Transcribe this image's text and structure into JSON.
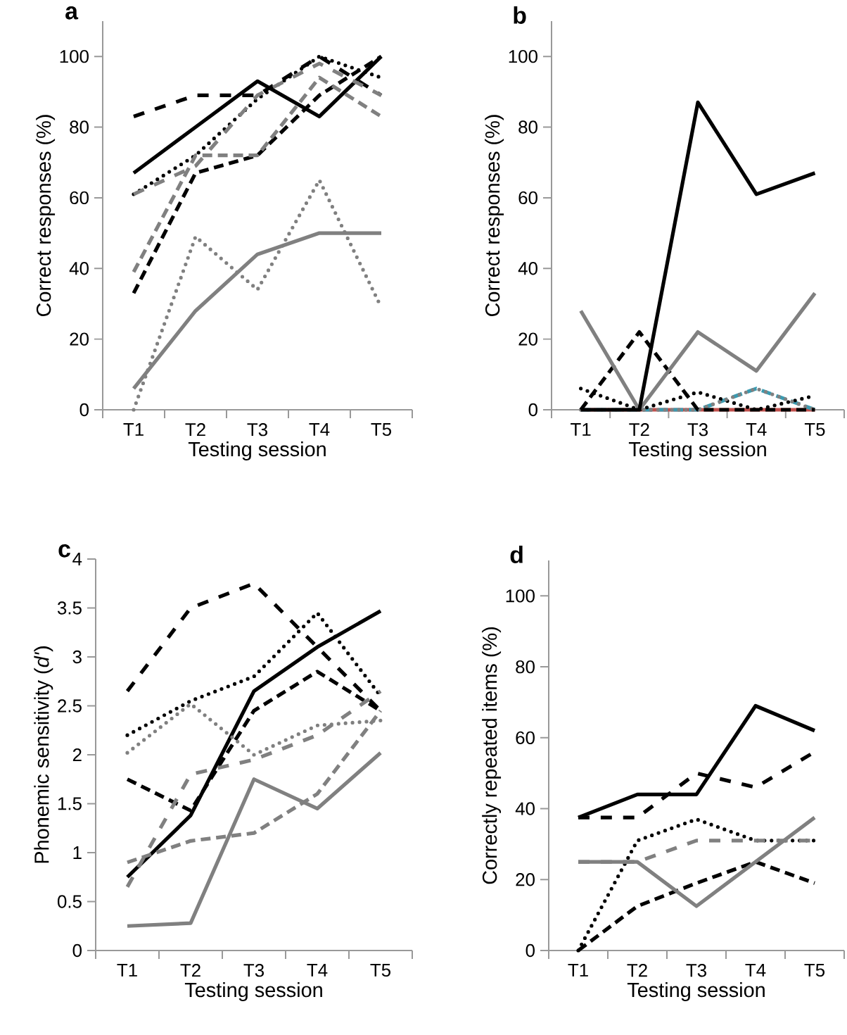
{
  "chart_data": [
    {
      "type": "line",
      "title": "a",
      "xlabel": "Testing session",
      "ylabel": "Correct responses (%)",
      "categories": [
        "T1",
        "T2",
        "T3",
        "T4",
        "T5"
      ],
      "ylim": [
        0,
        110
      ],
      "yticks": [
        0,
        20,
        40,
        60,
        80,
        100
      ],
      "marker": "none",
      "series": [
        {
          "color": "#000000",
          "line_style": "solid",
          "values": [
            67,
            80,
            93,
            83,
            100
          ]
        },
        {
          "color": "#000000",
          "line_style": "dashdot",
          "values": [
            83,
            89,
            89,
            100,
            89
          ]
        },
        {
          "color": "#000000",
          "line_style": "dashed",
          "values": [
            33,
            67,
            72,
            89,
            100
          ]
        },
        {
          "color": "#000000",
          "line_style": "dotted",
          "values": [
            61,
            72,
            88,
            100,
            94
          ]
        },
        {
          "color": "#808080",
          "line_style": "dashed",
          "values": [
            39,
            72,
            72,
            94,
            83
          ]
        },
        {
          "color": "#808080",
          "line_style": "dashdot",
          "values": [
            61,
            69,
            89,
            98,
            89
          ]
        },
        {
          "color": "#808080",
          "line_style": "dotted",
          "values": [
            0,
            49,
            34,
            65,
            29
          ]
        },
        {
          "color": "#808080",
          "line_style": "solid",
          "values": [
            6,
            28,
            44,
            50,
            50
          ]
        }
      ]
    },
    {
      "type": "line",
      "title": "b",
      "xlabel": "Testing session",
      "ylabel": "Correct responses (%)",
      "categories": [
        "T1",
        "T2",
        "T3",
        "T4",
        "T5"
      ],
      "ylim": [
        0,
        110
      ],
      "yticks": [
        0,
        20,
        40,
        60,
        80,
        100
      ],
      "marker": "none",
      "series": [
        {
          "color": "#c0504d",
          "line_style": "solid",
          "values": [
            0,
            0,
            0,
            0,
            0
          ]
        },
        {
          "color": "#3a9ab0",
          "line_style": "dashed",
          "values": [
            0,
            0,
            0,
            6,
            0
          ]
        },
        {
          "color": "#000000",
          "line_style": "dotted",
          "values": [
            6,
            0,
            5,
            0,
            4
          ]
        },
        {
          "color": "#808080",
          "line_style": "dotted",
          "values": [
            0,
            0,
            0,
            6,
            0
          ]
        },
        {
          "color": "#000000",
          "line_style": "dashed",
          "values": [
            0,
            22,
            0,
            0,
            0
          ]
        },
        {
          "color": "#808080",
          "line_style": "solid",
          "values": [
            28,
            0,
            22,
            11,
            33
          ]
        },
        {
          "color": "#000000",
          "line_style": "solid",
          "values": [
            0,
            0,
            87,
            61,
            67
          ]
        }
      ]
    },
    {
      "type": "line",
      "title": "c",
      "xlabel": "Testing session",
      "ylabel": "Phonemic sensitivity (*d'*)",
      "categories": [
        "T1",
        "T2",
        "T3",
        "T4",
        "T5"
      ],
      "ylim": [
        0,
        4
      ],
      "yticks": [
        0,
        0.5,
        1,
        1.5,
        2,
        2.5,
        3,
        3.5,
        4
      ],
      "marker": "none",
      "series": [
        {
          "color": "#000000",
          "line_style": "dashdot",
          "values": [
            2.65,
            3.5,
            3.75,
            3.1,
            2.45
          ]
        },
        {
          "color": "#000000",
          "line_style": "dotted",
          "values": [
            2.2,
            2.55,
            2.8,
            3.45,
            2.6
          ]
        },
        {
          "color": "#000000",
          "line_style": "solid",
          "values": [
            0.75,
            1.38,
            2.65,
            3.1,
            3.47
          ]
        },
        {
          "color": "#000000",
          "line_style": "dashed",
          "values": [
            1.75,
            1.43,
            2.45,
            2.85,
            2.45
          ]
        },
        {
          "color": "#808080",
          "line_style": "dotted",
          "values": [
            2.02,
            2.52,
            2.0,
            2.3,
            2.35
          ]
        },
        {
          "color": "#808080",
          "line_style": "dashdot",
          "values": [
            0.65,
            1.8,
            1.95,
            2.2,
            2.65
          ]
        },
        {
          "color": "#808080",
          "line_style": "dashed",
          "values": [
            0.9,
            1.12,
            1.2,
            1.6,
            2.45
          ]
        },
        {
          "color": "#808080",
          "line_style": "solid",
          "values": [
            0.25,
            0.28,
            1.75,
            1.45,
            2.02
          ]
        }
      ]
    },
    {
      "type": "line",
      "title": "d",
      "xlabel": "Testing session",
      "ylabel": "Correctly repeated items (%)",
      "categories": [
        "T1",
        "T2",
        "T3",
        "T4",
        "T5"
      ],
      "ylim": [
        0,
        110
      ],
      "yticks": [
        0,
        20,
        40,
        60,
        80,
        100
      ],
      "marker": "none",
      "series": [
        {
          "color": "#000000",
          "line_style": "solid",
          "values": [
            37.5,
            44,
            44,
            69,
            62
          ]
        },
        {
          "color": "#000000",
          "line_style": "dashdot",
          "values": [
            37.5,
            37.5,
            50,
            46,
            56
          ]
        },
        {
          "color": "#000000",
          "line_style": "dotted",
          "values": [
            0,
            31,
            37,
            31,
            31
          ]
        },
        {
          "color": "#000000",
          "line_style": "dashed",
          "values": [
            0,
            12.5,
            19,
            25,
            19
          ]
        },
        {
          "color": "#808080",
          "line_style": "dashdot",
          "values": [
            25,
            25,
            31,
            31,
            31
          ]
        },
        {
          "color": "#808080",
          "line_style": "solid",
          "values": [
            25,
            25,
            12.5,
            25,
            37.5
          ]
        }
      ]
    }
  ]
}
